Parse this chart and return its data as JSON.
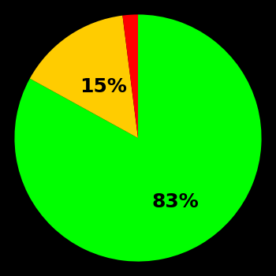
{
  "slices": [
    83,
    15,
    2
  ],
  "colors": [
    "#00ff00",
    "#ffcc00",
    "#ff0000"
  ],
  "labels": [
    "83%",
    "15%",
    ""
  ],
  "background_color": "#000000",
  "label_fontsize": 18,
  "label_fontweight": "bold",
  "startangle": 90,
  "figsize": [
    3.5,
    3.5
  ],
  "dpi": 100
}
